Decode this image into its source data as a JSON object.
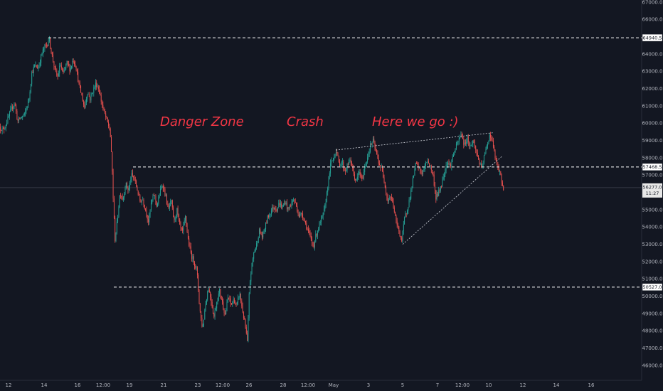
{
  "chart_data": {
    "type": "candlestick",
    "title": "",
    "xlabel": "",
    "ylabel": "",
    "ylim": [
      45500,
      67200
    ],
    "y_ticks": [
      "46000.0",
      "47000.0",
      "48000.0",
      "49000.0",
      "50000.0",
      "51000.0",
      "52000.0",
      "53000.0",
      "54000.0",
      "55000.0",
      "56000.0",
      "57000.0",
      "58000.0",
      "59000.0",
      "60000.0",
      "61000.0",
      "62000.0",
      "63000.0",
      "64000.0",
      "65000.0",
      "66000.0",
      "67000.0"
    ],
    "x_ticks": [
      "12",
      "14",
      "16",
      "12:00",
      "19",
      "21",
      "23",
      "12:00",
      "26",
      "28",
      "12:00",
      "May",
      "3",
      "5",
      "7",
      "12:00",
      "10",
      "12",
      "14",
      "16"
    ],
    "grid": false,
    "price_path": [
      [
        0,
        59800
      ],
      [
        6,
        59600
      ],
      [
        12,
        60200
      ],
      [
        18,
        60900
      ],
      [
        22,
        61200
      ],
      [
        26,
        60100
      ],
      [
        30,
        60300
      ],
      [
        36,
        60500
      ],
      [
        42,
        61400
      ],
      [
        46,
        62900
      ],
      [
        50,
        63300
      ],
      [
        55,
        63200
      ],
      [
        60,
        64000
      ],
      [
        64,
        64400
      ],
      [
        68,
        64600
      ],
      [
        70,
        64940
      ],
      [
        74,
        64000
      ],
      [
        78,
        63200
      ],
      [
        82,
        62600
      ],
      [
        86,
        63400
      ],
      [
        90,
        62800
      ],
      [
        95,
        63500
      ],
      [
        100,
        63100
      ],
      [
        104,
        63700
      ],
      [
        108,
        63300
      ],
      [
        112,
        62300
      ],
      [
        116,
        61600
      ],
      [
        120,
        60900
      ],
      [
        124,
        61800
      ],
      [
        128,
        61400
      ],
      [
        132,
        61900
      ],
      [
        136,
        62300
      ],
      [
        140,
        62000
      ],
      [
        144,
        61200
      ],
      [
        148,
        60600
      ],
      [
        152,
        60100
      ],
      [
        156,
        59600
      ],
      [
        159,
        57300
      ],
      [
        161,
        55000
      ],
      [
        163,
        53300
      ],
      [
        166,
        54300
      ],
      [
        170,
        56000
      ],
      [
        174,
        55600
      ],
      [
        178,
        56500
      ],
      [
        182,
        56100
      ],
      [
        186,
        57000
      ],
      [
        190,
        56800
      ],
      [
        194,
        56200
      ],
      [
        198,
        55500
      ],
      [
        202,
        55600
      ],
      [
        206,
        55000
      ],
      [
        210,
        54300
      ],
      [
        214,
        55400
      ],
      [
        218,
        55900
      ],
      [
        222,
        55200
      ],
      [
        226,
        56000
      ],
      [
        230,
        56500
      ],
      [
        234,
        55800
      ],
      [
        238,
        55000
      ],
      [
        242,
        55500
      ],
      [
        246,
        54300
      ],
      [
        250,
        55000
      ],
      [
        254,
        54000
      ],
      [
        258,
        53700
      ],
      [
        262,
        54600
      ],
      [
        266,
        53200
      ],
      [
        270,
        52400
      ],
      [
        274,
        52000
      ],
      [
        278,
        51500
      ],
      [
        282,
        49300
      ],
      [
        286,
        48100
      ],
      [
        290,
        49500
      ],
      [
        294,
        50500
      ],
      [
        298,
        49800
      ],
      [
        302,
        48800
      ],
      [
        306,
        49700
      ],
      [
        310,
        50300
      ],
      [
        314,
        49600
      ],
      [
        318,
        48900
      ],
      [
        322,
        50000
      ],
      [
        326,
        49500
      ],
      [
        330,
        49800
      ],
      [
        334,
        49400
      ],
      [
        338,
        50200
      ],
      [
        342,
        49200
      ],
      [
        346,
        48300
      ],
      [
        349,
        47300
      ],
      [
        352,
        50600
      ],
      [
        355,
        51700
      ],
      [
        358,
        52500
      ],
      [
        362,
        53000
      ],
      [
        366,
        53800
      ],
      [
        370,
        53400
      ],
      [
        374,
        54000
      ],
      [
        378,
        54600
      ],
      [
        382,
        54900
      ],
      [
        386,
        55200
      ],
      [
        390,
        55000
      ],
      [
        394,
        55400
      ],
      [
        398,
        55100
      ],
      [
        402,
        55500
      ],
      [
        406,
        55000
      ],
      [
        410,
        55300
      ],
      [
        414,
        55600
      ],
      [
        418,
        55200
      ],
      [
        422,
        54600
      ],
      [
        426,
        54800
      ],
      [
        430,
        54300
      ],
      [
        434,
        53800
      ],
      [
        438,
        53300
      ],
      [
        442,
        52900
      ],
      [
        446,
        53600
      ],
      [
        450,
        54100
      ],
      [
        454,
        54500
      ],
      [
        458,
        55100
      ],
      [
        462,
        56400
      ],
      [
        466,
        57600
      ],
      [
        470,
        58000
      ],
      [
        474,
        58500
      ],
      [
        478,
        57600
      ],
      [
        482,
        57800
      ],
      [
        486,
        57200
      ],
      [
        490,
        57600
      ],
      [
        494,
        57900
      ],
      [
        498,
        57100
      ],
      [
        502,
        56600
      ],
      [
        506,
        57200
      ],
      [
        510,
        56700
      ],
      [
        514,
        57400
      ],
      [
        518,
        58100
      ],
      [
        522,
        58700
      ],
      [
        526,
        59000
      ],
      [
        530,
        58300
      ],
      [
        534,
        57700
      ],
      [
        538,
        57300
      ],
      [
        542,
        56600
      ],
      [
        546,
        55500
      ],
      [
        550,
        55800
      ],
      [
        554,
        55300
      ],
      [
        558,
        54300
      ],
      [
        562,
        53800
      ],
      [
        566,
        53200
      ],
      [
        570,
        54500
      ],
      [
        574,
        55100
      ],
      [
        578,
        55800
      ],
      [
        582,
        56800
      ],
      [
        586,
        57700
      ],
      [
        590,
        57400
      ],
      [
        594,
        57100
      ],
      [
        598,
        57400
      ],
      [
        602,
        57900
      ],
      [
        606,
        57500
      ],
      [
        610,
        57000
      ],
      [
        614,
        55700
      ],
      [
        618,
        56000
      ],
      [
        622,
        56500
      ],
      [
        626,
        57200
      ],
      [
        630,
        57800
      ],
      [
        634,
        57500
      ],
      [
        638,
        58100
      ],
      [
        642,
        58600
      ],
      [
        646,
        59000
      ],
      [
        650,
        59400
      ],
      [
        654,
        58700
      ],
      [
        658,
        59200
      ],
      [
        662,
        58600
      ],
      [
        666,
        59000
      ],
      [
        670,
        58500
      ],
      [
        674,
        57900
      ],
      [
        678,
        57300
      ],
      [
        682,
        58100
      ],
      [
        686,
        58700
      ],
      [
        690,
        59400
      ],
      [
        694,
        58800
      ],
      [
        698,
        57900
      ],
      [
        702,
        57300
      ],
      [
        706,
        56800
      ],
      [
        708,
        56277
      ]
    ],
    "levels": [
      {
        "label": "64940.5",
        "value": 64940.5,
        "x_start": 68
      },
      {
        "label": "57468.5",
        "value": 57468.5,
        "x_start": 187
      },
      {
        "label": "50527.0",
        "value": 50527.0,
        "x_start": 160
      }
    ],
    "current_price": {
      "label": "56277.0",
      "time": "11:27",
      "value": 56277
    },
    "trendlines": [
      {
        "from": [
          472,
          58450
        ],
        "to": [
          693,
          59450
        ]
      },
      {
        "from": [
          566,
          53000
        ],
        "to": [
          706,
          58100
        ]
      }
    ],
    "annotations": [
      {
        "text": "Danger Zone",
        "x": 225,
        "value": 60100
      },
      {
        "text": "Crash",
        "x": 403,
        "value": 60100
      },
      {
        "text": "Here we go :)",
        "x": 523,
        "value": 60100
      }
    ]
  }
}
